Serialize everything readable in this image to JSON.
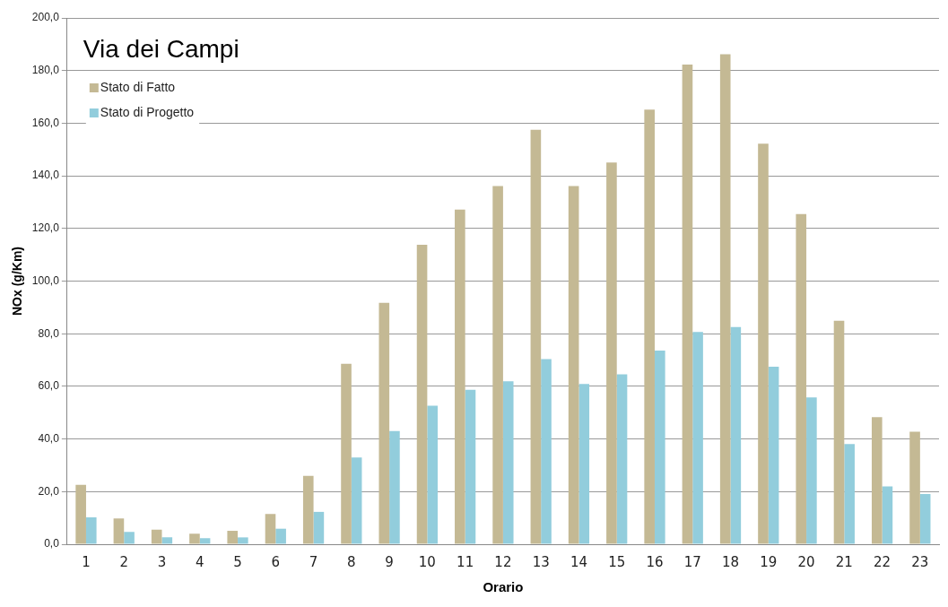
{
  "chart_data": {
    "type": "bar",
    "title": "Via dei Campi",
    "xlabel": "Orario",
    "ylabel": "NOx (g/Km)",
    "categories": [
      "1",
      "2",
      "3",
      "4",
      "5",
      "6",
      "7",
      "8",
      "9",
      "10",
      "11",
      "12",
      "13",
      "14",
      "15",
      "16",
      "17",
      "18",
      "19",
      "20",
      "21",
      "22",
      "23"
    ],
    "series": [
      {
        "name": "Stato di Fatto",
        "color": "#c4b994",
        "values": [
          22.6,
          9.8,
          5.5,
          4.0,
          5.1,
          11.5,
          26,
          68.6,
          91.7,
          113.8,
          127.2,
          136.1,
          157.5,
          136.1,
          145.1,
          165.2,
          182.3,
          186.2,
          152.2,
          125.5,
          84.9,
          48.3,
          42.8
        ]
      },
      {
        "name": "Stato di Progetto",
        "color": "#92cddc",
        "values": [
          10.2,
          4.7,
          2.6,
          2.3,
          2.6,
          5.9,
          12.3,
          33.0,
          43.0,
          52.6,
          58.7,
          61.9,
          70.4,
          60.9,
          64.6,
          73.6,
          80.7,
          82.5,
          67.5,
          55.8,
          38.1,
          22.0,
          19.1
        ]
      }
    ],
    "ylim": [
      0,
      200
    ],
    "yticks": [
      {
        "value": 0,
        "label": "0,0"
      },
      {
        "value": 20,
        "label": "20,0"
      },
      {
        "value": 40,
        "label": "40,0"
      },
      {
        "value": 60,
        "label": "60,0"
      },
      {
        "value": 80,
        "label": "80,0"
      },
      {
        "value": 100,
        "label": "100,0"
      },
      {
        "value": 120,
        "label": "120,0"
      },
      {
        "value": 140,
        "label": "140,0"
      },
      {
        "value": 160,
        "label": "160,0"
      },
      {
        "value": 180,
        "label": "180,0"
      },
      {
        "value": 200,
        "label": "200,0"
      }
    ],
    "grid": "y",
    "legend": "top left"
  }
}
